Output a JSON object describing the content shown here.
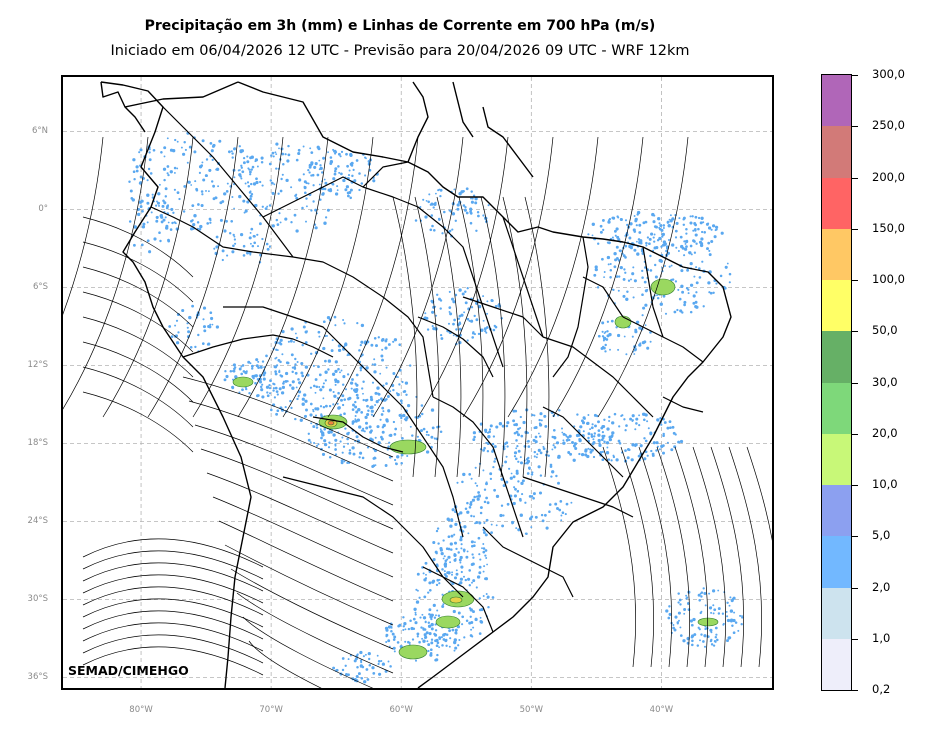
{
  "header": {
    "title": "Precipitação em 3h (mm) e Linhas de Corrente em 700 hPa (m/s)",
    "subtitle": "Iniciado em 06/04/2026 12 UTC - Previsão para 20/04/2026 09 UTC - WRF 12km"
  },
  "map": {
    "lat_labels": [
      "6°N",
      "0°",
      "6°S",
      "12°S",
      "18°S",
      "24°S",
      "30°S",
      "36°S"
    ],
    "lon_labels": [
      "80°W",
      "70°W",
      "60°W",
      "50°W",
      "40°W"
    ],
    "lat_values": [
      6,
      0,
      -6,
      -12,
      -18,
      -24,
      -30,
      -36
    ],
    "lon_values": [
      -80,
      -70,
      -60,
      -50,
      -40
    ],
    "extent": {
      "lon_min": -86,
      "lon_max": -31.5,
      "lat_min": -36.8,
      "lat_max": 10.2
    },
    "watermark": "SEMAD/CIMEHGO"
  },
  "colorbar": {
    "labels": [
      "0,2",
      "1,0",
      "2,0",
      "5,0",
      "10,0",
      "20,0",
      "30,0",
      "50,0",
      "100,0",
      "150,0",
      "200,0",
      "250,0",
      "300,0"
    ],
    "colors": [
      "#eeeefa",
      "#cde3ee",
      "#72b8ff",
      "#8ca0f0",
      "#c8f878",
      "#7ed87a",
      "#66b066",
      "#ffff66",
      "#ffc864",
      "#ff6464",
      "#d27a78",
      "#b066b8"
    ]
  },
  "colors": {
    "rain_light": "#5aa8f0",
    "rain_medium": "#9ad860",
    "rain_heavy": "#e6d24a",
    "rain_max": "#f08040",
    "streamline": "#000000",
    "grid": "#b4b4b4"
  }
}
